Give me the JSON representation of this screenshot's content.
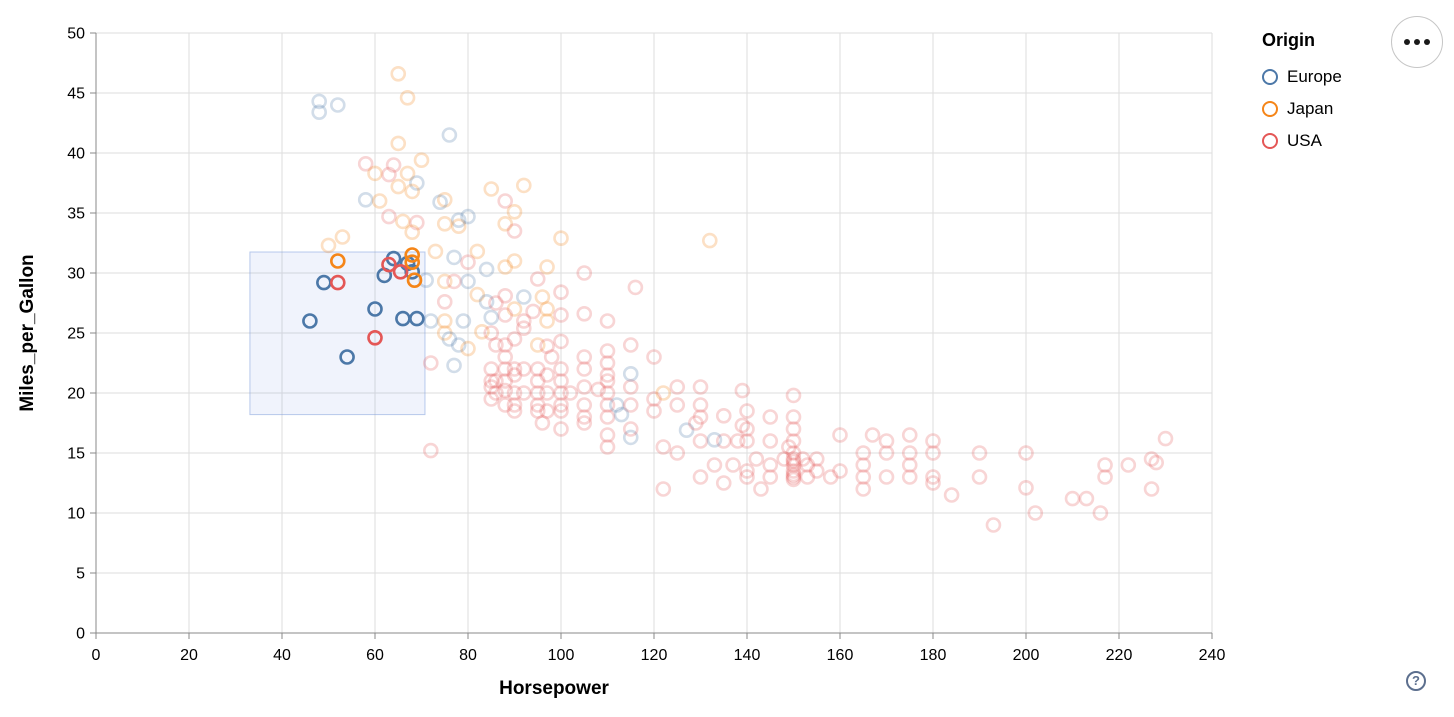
{
  "legend": {
    "title": "Origin",
    "items": [
      {
        "label": "Europe",
        "color": "#4c78a8"
      },
      {
        "label": "Japan",
        "color": "#f58518"
      },
      {
        "label": "USA",
        "color": "#e45756"
      }
    ]
  },
  "help": {
    "label": "?"
  },
  "style": {
    "grid_color": "#dddddd",
    "axis_color": "#888888",
    "label_color": "#000000",
    "brush_fill": "rgba(105,141,221,0.10)",
    "brush_stroke": "rgba(130,160,220,0.55)"
  },
  "chart_data": {
    "type": "scatter",
    "xlabel": "Horsepower",
    "ylabel": "Miles_per_Gallon",
    "xlim": [
      0,
      240
    ],
    "ylim": [
      0,
      50
    ],
    "x_ticks": [
      0,
      20,
      40,
      60,
      80,
      100,
      120,
      140,
      160,
      180,
      200,
      220,
      240
    ],
    "y_ticks": [
      0,
      5,
      10,
      15,
      20,
      25,
      30,
      35,
      40,
      45,
      50
    ],
    "grid": true,
    "legend_position": "top-right",
    "series": [
      {
        "key": "E",
        "name": "Europe",
        "color": "#4c78a8"
      },
      {
        "key": "J",
        "name": "Japan",
        "color": "#f58518"
      },
      {
        "key": "U",
        "name": "USA",
        "color": "#e45756"
      }
    ],
    "brush_extent": {
      "horsepower": [
        33.1,
        70.75
      ],
      "mpg": [
        18.2,
        31.75
      ]
    },
    "unselected_opacity": 0.25,
    "points": [
      [
        46,
        26,
        "E"
      ],
      [
        49,
        29.2,
        "E"
      ],
      [
        54,
        23,
        "E"
      ],
      [
        60,
        27,
        "E"
      ],
      [
        62,
        29.8,
        "E"
      ],
      [
        64,
        31.2,
        "E"
      ],
      [
        67,
        30.8,
        "E"
      ],
      [
        68,
        30.1,
        "E"
      ],
      [
        66,
        26.2,
        "E"
      ],
      [
        69,
        26.2,
        "E"
      ],
      [
        52,
        31,
        "J"
      ],
      [
        68,
        31.5,
        "J"
      ],
      [
        68,
        30.9,
        "J"
      ],
      [
        68.5,
        29.4,
        "J"
      ],
      [
        52,
        29.2,
        "U"
      ],
      [
        63,
        30.7,
        "U"
      ],
      [
        65.5,
        30.1,
        "U"
      ],
      [
        60,
        24.6,
        "U"
      ],
      [
        65,
        46.6,
        "J"
      ],
      [
        67,
        44.6,
        "J"
      ],
      [
        48,
        44.3,
        "E"
      ],
      [
        48,
        43.4,
        "E"
      ],
      [
        52,
        44,
        "E"
      ],
      [
        76,
        41.5,
        "E"
      ],
      [
        65,
        40.8,
        "J"
      ],
      [
        70,
        39.4,
        "J"
      ],
      [
        58,
        39.1,
        "U"
      ],
      [
        64,
        39,
        "U"
      ],
      [
        60,
        38.3,
        "J"
      ],
      [
        63,
        38.2,
        "U"
      ],
      [
        67,
        38.3,
        "J"
      ],
      [
        69,
        37.5,
        "E"
      ],
      [
        65,
        37.2,
        "J"
      ],
      [
        68,
        36.8,
        "J"
      ],
      [
        58,
        36.1,
        "E"
      ],
      [
        61,
        36,
        "J"
      ],
      [
        75,
        36.1,
        "J"
      ],
      [
        74,
        35.9,
        "E"
      ],
      [
        78,
        34.4,
        "E"
      ],
      [
        78,
        33.9,
        "J"
      ],
      [
        63,
        34.7,
        "U"
      ],
      [
        66,
        34.3,
        "J"
      ],
      [
        69,
        34.2,
        "U"
      ],
      [
        68,
        33.4,
        "J"
      ],
      [
        53,
        33,
        "J"
      ],
      [
        50,
        32.3,
        "J"
      ],
      [
        85,
        37,
        "J"
      ],
      [
        92,
        37.3,
        "J"
      ],
      [
        88,
        36,
        "U"
      ],
      [
        90,
        35.1,
        "J"
      ],
      [
        75,
        34.1,
        "J"
      ],
      [
        80,
        34.7,
        "E"
      ],
      [
        88,
        34.1,
        "J"
      ],
      [
        90,
        33.5,
        "U"
      ],
      [
        100,
        32.9,
        "J"
      ],
      [
        132,
        32.7,
        "J"
      ],
      [
        73,
        31.8,
        "J"
      ],
      [
        77,
        31.3,
        "E"
      ],
      [
        80,
        30.9,
        "U"
      ],
      [
        82,
        31.8,
        "J"
      ],
      [
        84,
        30.3,
        "E"
      ],
      [
        71,
        29.4,
        "E"
      ],
      [
        75,
        29.3,
        "J"
      ],
      [
        77,
        29.3,
        "U"
      ],
      [
        80,
        29.3,
        "E"
      ],
      [
        82,
        28.2,
        "J"
      ],
      [
        84,
        27.6,
        "E"
      ],
      [
        75,
        27.6,
        "U"
      ],
      [
        88,
        30.5,
        "J"
      ],
      [
        90,
        31,
        "J"
      ],
      [
        95,
        29.5,
        "U"
      ],
      [
        97,
        30.5,
        "J"
      ],
      [
        105,
        30,
        "U"
      ],
      [
        88,
        28.1,
        "U"
      ],
      [
        92,
        28,
        "E"
      ],
      [
        100,
        28.4,
        "U"
      ],
      [
        96,
        28,
        "J"
      ],
      [
        116,
        28.8,
        "U"
      ],
      [
        86,
        27.5,
        "U"
      ],
      [
        90,
        27,
        "J"
      ],
      [
        94,
        26.8,
        "U"
      ],
      [
        97,
        27,
        "J"
      ],
      [
        88,
        26.5,
        "U"
      ],
      [
        85,
        26.3,
        "E"
      ],
      [
        92,
        26,
        "U"
      ],
      [
        105,
        26.6,
        "U"
      ],
      [
        72,
        26,
        "E"
      ],
      [
        75,
        26,
        "J"
      ],
      [
        79,
        26,
        "E"
      ],
      [
        83,
        25.1,
        "J"
      ],
      [
        88,
        24,
        "U"
      ],
      [
        90,
        24.5,
        "U"
      ],
      [
        95,
        24,
        "J"
      ],
      [
        97,
        23.9,
        "U"
      ],
      [
        100,
        24.3,
        "U"
      ],
      [
        75,
        25,
        "J"
      ],
      [
        78,
        24,
        "E"
      ],
      [
        85,
        25,
        "U"
      ],
      [
        86,
        24,
        "U"
      ],
      [
        92,
        25.4,
        "U"
      ],
      [
        110,
        23.5,
        "U"
      ],
      [
        105,
        23,
        "U"
      ],
      [
        98,
        23,
        "U"
      ],
      [
        115,
        24,
        "U"
      ],
      [
        120,
        23,
        "U"
      ],
      [
        88,
        23,
        "U"
      ],
      [
        80,
        23.7,
        "J"
      ],
      [
        76,
        24.5,
        "E"
      ],
      [
        97,
        26,
        "J"
      ],
      [
        110,
        26,
        "U"
      ],
      [
        100,
        26.5,
        "U"
      ],
      [
        85,
        20.5,
        "U"
      ],
      [
        85,
        19.5,
        "U"
      ],
      [
        85,
        21,
        "U"
      ],
      [
        85,
        22,
        "U"
      ],
      [
        86,
        21,
        "U"
      ],
      [
        86,
        20,
        "U"
      ],
      [
        88,
        20.2,
        "U"
      ],
      [
        88,
        21,
        "U"
      ],
      [
        88,
        19,
        "U"
      ],
      [
        88,
        22,
        "U"
      ],
      [
        90,
        20,
        "U"
      ],
      [
        90,
        21.5,
        "U"
      ],
      [
        90,
        19,
        "U"
      ],
      [
        90,
        22,
        "U"
      ],
      [
        90,
        18.5,
        "U"
      ],
      [
        92,
        20,
        "U"
      ],
      [
        92,
        22,
        "U"
      ],
      [
        95,
        20,
        "U"
      ],
      [
        95,
        21,
        "U"
      ],
      [
        95,
        18.5,
        "U"
      ],
      [
        95,
        22,
        "U"
      ],
      [
        95,
        19,
        "U"
      ],
      [
        97,
        20,
        "U"
      ],
      [
        97,
        21.5,
        "U"
      ],
      [
        97,
        18.5,
        "U"
      ],
      [
        100,
        20,
        "U"
      ],
      [
        100,
        19,
        "U"
      ],
      [
        100,
        21,
        "U"
      ],
      [
        100,
        22,
        "U"
      ],
      [
        100,
        18.5,
        "U"
      ],
      [
        102,
        20,
        "U"
      ],
      [
        105,
        19,
        "U"
      ],
      [
        105,
        20.5,
        "U"
      ],
      [
        105,
        18,
        "U"
      ],
      [
        105,
        22,
        "U"
      ],
      [
        108,
        20.3,
        "U"
      ],
      [
        110,
        19,
        "U"
      ],
      [
        110,
        20,
        "U"
      ],
      [
        110,
        21,
        "U"
      ],
      [
        110,
        18,
        "U"
      ],
      [
        110,
        21.5,
        "U"
      ],
      [
        110,
        22.5,
        "U"
      ],
      [
        112,
        19,
        "E"
      ],
      [
        115,
        20.5,
        "U"
      ],
      [
        115,
        19,
        "U"
      ],
      [
        120,
        19.5,
        "U"
      ],
      [
        120,
        18.5,
        "U"
      ],
      [
        122,
        20,
        "J"
      ],
      [
        125,
        19,
        "U"
      ],
      [
        125,
        20.5,
        "U"
      ],
      [
        130,
        19,
        "U"
      ],
      [
        130,
        20.5,
        "U"
      ],
      [
        139,
        20.2,
        "U"
      ],
      [
        77,
        22.3,
        "E"
      ],
      [
        72,
        22.5,
        "U"
      ],
      [
        113,
        18.2,
        "E"
      ],
      [
        115,
        21.6,
        "E"
      ],
      [
        130,
        18,
        "U"
      ],
      [
        130,
        16,
        "U"
      ],
      [
        135,
        16,
        "U"
      ],
      [
        135,
        18.1,
        "U"
      ],
      [
        137,
        14,
        "U"
      ],
      [
        138,
        16,
        "U"
      ],
      [
        139,
        17.3,
        "U"
      ],
      [
        140,
        17,
        "U"
      ],
      [
        140,
        16,
        "U"
      ],
      [
        140,
        13.5,
        "U"
      ],
      [
        140,
        18.5,
        "U"
      ],
      [
        142,
        14.5,
        "U"
      ],
      [
        145,
        14,
        "U"
      ],
      [
        145,
        16,
        "U"
      ],
      [
        145,
        18,
        "U"
      ],
      [
        145,
        13,
        "U"
      ],
      [
        148,
        14.5,
        "U"
      ],
      [
        149,
        15.5,
        "U"
      ],
      [
        150,
        13,
        "U"
      ],
      [
        150,
        13.2,
        "U"
      ],
      [
        150,
        13.5,
        "U"
      ],
      [
        150,
        14,
        "U"
      ],
      [
        150,
        14.3,
        "U"
      ],
      [
        150,
        14.5,
        "U"
      ],
      [
        150,
        15,
        "U"
      ],
      [
        150,
        16,
        "U"
      ],
      [
        150,
        17,
        "U"
      ],
      [
        150,
        18,
        "U"
      ],
      [
        150,
        19.8,
        "U"
      ],
      [
        152,
        14.5,
        "U"
      ],
      [
        153,
        14,
        "U"
      ],
      [
        153,
        13,
        "U"
      ],
      [
        155,
        14.5,
        "U"
      ],
      [
        155,
        13.5,
        "U"
      ],
      [
        158,
        13,
        "U"
      ],
      [
        160,
        13.5,
        "U"
      ],
      [
        160,
        16.5,
        "U"
      ],
      [
        165,
        15,
        "U"
      ],
      [
        165,
        13,
        "U"
      ],
      [
        165,
        12,
        "U"
      ],
      [
        165,
        14,
        "U"
      ],
      [
        167,
        16.5,
        "U"
      ],
      [
        170,
        15,
        "U"
      ],
      [
        170,
        13,
        "U"
      ],
      [
        170,
        16,
        "U"
      ],
      [
        175,
        13,
        "U"
      ],
      [
        175,
        14,
        "U"
      ],
      [
        175,
        15,
        "U"
      ],
      [
        175,
        16.5,
        "U"
      ],
      [
        180,
        16,
        "U"
      ],
      [
        180,
        15,
        "U"
      ],
      [
        180,
        12.5,
        "U"
      ],
      [
        180,
        13,
        "U"
      ],
      [
        190,
        15,
        "U"
      ],
      [
        190,
        13,
        "U"
      ],
      [
        127,
        16.9,
        "E"
      ],
      [
        133,
        16.1,
        "E"
      ],
      [
        115,
        16.3,
        "E"
      ],
      [
        122,
        15.5,
        "U"
      ],
      [
        125,
        15,
        "U"
      ],
      [
        129,
        17.5,
        "U"
      ],
      [
        133,
        14,
        "U"
      ],
      [
        96,
        17.5,
        "U"
      ],
      [
        100,
        17,
        "U"
      ],
      [
        105,
        17.5,
        "U"
      ],
      [
        110,
        16.5,
        "U"
      ],
      [
        115,
        17,
        "U"
      ],
      [
        110,
        15.5,
        "U"
      ],
      [
        72,
        15.2,
        "U"
      ],
      [
        130,
        13,
        "U"
      ],
      [
        135,
        12.5,
        "U"
      ],
      [
        140,
        13,
        "U"
      ],
      [
        143,
        12,
        "U"
      ],
      [
        122,
        12,
        "U"
      ],
      [
        150,
        12.8,
        "U"
      ],
      [
        193,
        9,
        "U"
      ],
      [
        202,
        10,
        "U"
      ],
      [
        216,
        10,
        "U"
      ],
      [
        200,
        15,
        "U"
      ],
      [
        200,
        12.1,
        "U"
      ],
      [
        210,
        11.2,
        "U"
      ],
      [
        213,
        11.2,
        "U"
      ],
      [
        217,
        14,
        "U"
      ],
      [
        217,
        13,
        "U"
      ],
      [
        222,
        14,
        "U"
      ],
      [
        227,
        14.5,
        "U"
      ],
      [
        227,
        12,
        "U"
      ],
      [
        230,
        16.2,
        "U"
      ],
      [
        228,
        14.2,
        "U"
      ],
      [
        184,
        11.5,
        "U"
      ]
    ]
  }
}
